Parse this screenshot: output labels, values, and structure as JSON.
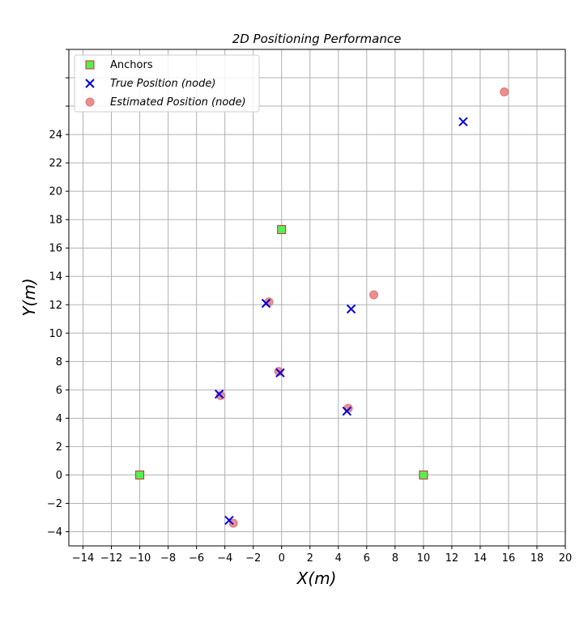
{
  "chart_data": {
    "type": "scatter",
    "title": "2D Positioning Performance",
    "xlabel": "X(m)",
    "ylabel": "Y(m)",
    "xlim": [
      -15,
      20
    ],
    "ylim": [
      -5,
      30
    ],
    "x_ticks": [
      -14,
      -12,
      -10,
      -8,
      -6,
      -4,
      -2,
      0,
      2,
      4,
      6,
      8,
      10,
      12,
      14,
      16,
      18,
      20
    ],
    "y_ticks": [
      -4,
      -2,
      0,
      2,
      4,
      6,
      8,
      10,
      12,
      14,
      16,
      18,
      20,
      22,
      24
    ],
    "y_unlabeled_ticks": [
      26,
      28,
      30
    ],
    "grid": true,
    "legend_position": "top-left",
    "series": [
      {
        "name": "Anchors",
        "marker": "square",
        "color": "#55ee55",
        "edge_color": "#d62728",
        "points": [
          {
            "x": -10,
            "y": 0
          },
          {
            "x": 10,
            "y": 0
          },
          {
            "x": 0,
            "y": 17.3
          }
        ]
      },
      {
        "name": "True Position (node)",
        "marker": "x",
        "color": "#0000dd",
        "points": [
          {
            "x": 12.8,
            "y": 24.9
          },
          {
            "x": -1.1,
            "y": 12.1
          },
          {
            "x": 4.9,
            "y": 11.7
          },
          {
            "x": -0.1,
            "y": 7.2
          },
          {
            "x": -4.4,
            "y": 5.7
          },
          {
            "x": 4.6,
            "y": 4.5
          },
          {
            "x": -3.7,
            "y": -3.2
          }
        ]
      },
      {
        "name": "Estimated Position (node)",
        "marker": "circle",
        "color": "#e57373",
        "points": [
          {
            "x": 15.7,
            "y": 27.0
          },
          {
            "x": -0.9,
            "y": 12.2
          },
          {
            "x": 6.5,
            "y": 12.7
          },
          {
            "x": -0.2,
            "y": 7.3
          },
          {
            "x": -4.3,
            "y": 5.6
          },
          {
            "x": 4.7,
            "y": 4.7
          },
          {
            "x": -3.4,
            "y": -3.4
          }
        ]
      }
    ]
  }
}
